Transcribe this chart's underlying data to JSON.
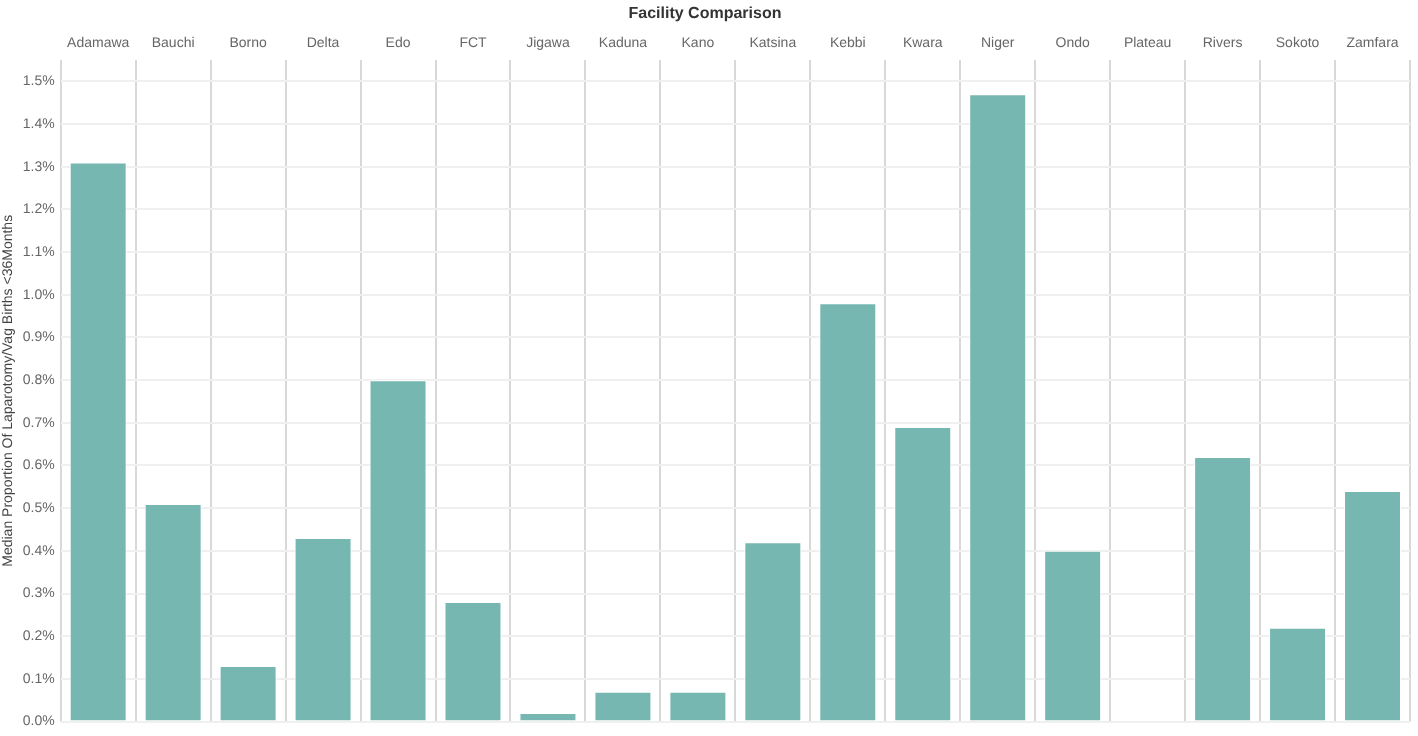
{
  "chart_data": {
    "type": "bar",
    "title": "Facility Comparison",
    "ylabel": "Median Proportion Of Laparotomy/Vag Births <36Months",
    "categories": [
      "Adamawa",
      "Bauchi",
      "Borno",
      "Delta",
      "Edo",
      "FCT",
      "Jigawa",
      "Kaduna",
      "Kano",
      "Katsina",
      "Kebbi",
      "Kwara",
      "Niger",
      "Ondo",
      "Plateau",
      "Rivers",
      "Sokoto",
      "Zamfara"
    ],
    "values": [
      1.31,
      0.51,
      0.13,
      0.43,
      0.8,
      0.28,
      0.02,
      0.07,
      0.07,
      0.42,
      0.98,
      0.69,
      1.47,
      0.4,
      null,
      0.62,
      0.22,
      0.54
    ],
    "color": "#76b7b2",
    "ylim": [
      0,
      1.55
    ],
    "yticks": [
      {
        "value": 0,
        "label": "0.0%"
      },
      {
        "value": 0.1,
        "label": "0.1%"
      },
      {
        "value": 0.2,
        "label": "0.2%"
      },
      {
        "value": 0.3,
        "label": "0.3%"
      },
      {
        "value": 0.4,
        "label": "0.4%"
      },
      {
        "value": 0.5,
        "label": "0.5%"
      },
      {
        "value": 0.6,
        "label": "0.6%"
      },
      {
        "value": 0.7,
        "label": "0.7%"
      },
      {
        "value": 0.8,
        "label": "0.8%"
      },
      {
        "value": 0.9,
        "label": "0.9%"
      },
      {
        "value": 1.0,
        "label": "1.0%"
      },
      {
        "value": 1.1,
        "label": "1.1%"
      },
      {
        "value": 1.2,
        "label": "1.2%"
      },
      {
        "value": 1.3,
        "label": "1.3%"
      },
      {
        "value": 1.4,
        "label": "1.4%"
      },
      {
        "value": 1.5,
        "label": "1.5%"
      }
    ],
    "grid": true,
    "legend": false
  }
}
